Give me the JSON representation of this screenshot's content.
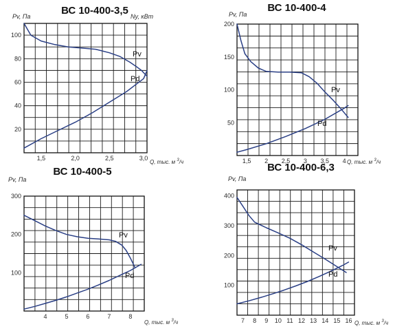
{
  "chart_data": [
    {
      "type": "line",
      "title": "ВС 10-400-3,5",
      "ylabel": "Pv, Па",
      "y2label": "Ny, кВт",
      "xlabel": "Q, тыс. м",
      "xlabel_sup": "3",
      "xlabel_tail": "/ч",
      "xlim": [
        1.25,
        3.05
      ],
      "ylim": [
        0,
        110
      ],
      "x_ticks": [
        1.5,
        2.0,
        2.5,
        3.0
      ],
      "x_tick_labels": [
        "1,5",
        "2,0",
        "2,5",
        "3,0"
      ],
      "y_ticks": [
        20,
        40,
        60,
        80,
        100
      ],
      "y_tick_labels": [
        "20",
        "40",
        "60",
        "80",
        "100"
      ],
      "grid": true,
      "series": [
        {
          "name": "Pv",
          "x": [
            1.25,
            1.35,
            1.5,
            1.7,
            1.9,
            2.1,
            2.3,
            2.5,
            2.65,
            2.8,
            2.9,
            2.97,
            3.05
          ],
          "y": [
            110,
            100,
            95,
            92,
            90,
            89,
            88,
            85,
            82,
            77,
            73,
            70,
            65
          ]
        },
        {
          "name": "Pd",
          "x": [
            1.25,
            1.5,
            1.75,
            2.0,
            2.25,
            2.5,
            2.75,
            3.0,
            3.05
          ],
          "y": [
            4,
            12,
            19,
            26,
            34,
            43,
            52,
            63,
            70
          ]
        }
      ]
    },
    {
      "type": "line",
      "title": "ВС 10-400-4",
      "ylabel": "Pv, Па",
      "xlabel": "Q, тыс. м",
      "xlabel_sup": "3",
      "xlabel_tail": "/ч",
      "xlim": [
        1.25,
        4.35
      ],
      "ylim": [
        0,
        200
      ],
      "x_ticks": [
        1.5,
        2.0,
        2.5,
        3.0,
        3.5,
        4.0
      ],
      "x_tick_labels": [
        "1,5",
        "2",
        "2,5",
        "3",
        "3,5",
        "4"
      ],
      "y_ticks": [
        50,
        100,
        150,
        200
      ],
      "y_tick_labels": [
        "50",
        "100",
        "150",
        "200"
      ],
      "grid": true,
      "series": [
        {
          "name": "Pv",
          "x": [
            1.25,
            1.35,
            1.45,
            1.6,
            1.8,
            2.0,
            2.3,
            2.6,
            2.9,
            3.1,
            3.3,
            3.5,
            3.7,
            3.9,
            4.1
          ],
          "y": [
            200,
            175,
            155,
            143,
            133,
            128,
            127,
            127,
            126,
            120,
            110,
            97,
            85,
            72,
            58
          ]
        },
        {
          "name": "Pd",
          "x": [
            1.25,
            1.5,
            2.0,
            2.5,
            3.0,
            3.5,
            4.0,
            4.1
          ],
          "y": [
            5,
            9,
            18,
            29,
            41,
            55,
            72,
            76
          ]
        }
      ]
    },
    {
      "type": "line",
      "title": "ВС 10-400-5",
      "ylabel": "Pv, Па",
      "xlabel": "Q, тыс. м",
      "xlabel_sup": "3",
      "xlabel_tail": "/ч",
      "xlim": [
        3.0,
        8.65
      ],
      "ylim": [
        0,
        300
      ],
      "x_ticks": [
        4,
        5,
        6,
        7,
        8
      ],
      "x_tick_labels": [
        "4",
        "5",
        "6",
        "7",
        "8"
      ],
      "y_ticks": [
        100,
        200,
        300
      ],
      "y_tick_labels": [
        "100",
        "200",
        "300"
      ],
      "grid": true,
      "series": [
        {
          "name": "Pv",
          "x": [
            3.0,
            3.5,
            4.0,
            4.5,
            5.0,
            5.5,
            6.0,
            6.5,
            7.0,
            7.3,
            7.6,
            7.8,
            8.0,
            8.2
          ],
          "y": [
            250,
            236,
            222,
            210,
            200,
            194,
            190,
            188,
            186,
            182,
            172,
            158,
            138,
            115
          ]
        },
        {
          "name": "Pd",
          "x": [
            3.0,
            3.5,
            4.0,
            4.5,
            5.0,
            5.5,
            6.0,
            6.5,
            7.0,
            7.5,
            8.0,
            8.5
          ],
          "y": [
            5,
            12,
            20,
            28,
            37,
            47,
            57,
            68,
            80,
            93,
            106,
            122
          ]
        }
      ]
    },
    {
      "type": "line",
      "title": "ВС 10-400-6,3",
      "ylabel": "Pv, Па",
      "xlabel": "Q, тыс. м",
      "xlabel_sup": "3",
      "xlabel_tail": "/ч",
      "xlim": [
        6.5,
        16.5
      ],
      "ylim": [
        0,
        420
      ],
      "x_ticks": [
        7,
        8,
        9,
        10,
        11,
        12,
        13,
        14,
        15,
        16
      ],
      "x_tick_labels": [
        "7",
        "8",
        "9",
        "10",
        "11",
        "12",
        "13",
        "14",
        "15",
        "16"
      ],
      "y_ticks": [
        100,
        200,
        300,
        400
      ],
      "y_tick_labels": [
        "100",
        "200",
        "300",
        "400"
      ],
      "grid": true,
      "series": [
        {
          "name": "Pv",
          "x": [
            6.5,
            7.0,
            7.5,
            8.0,
            9.0,
            10.0,
            11.0,
            12.0,
            13.0,
            14.0,
            15.0,
            15.8
          ],
          "y": [
            395,
            365,
            335,
            312,
            293,
            276,
            258,
            236,
            212,
            188,
            163,
            143
          ]
        },
        {
          "name": "Pd",
          "x": [
            6.5,
            7.5,
            8.5,
            9.5,
            10.5,
            11.5,
            12.5,
            13.5,
            14.5,
            15.5,
            16.0
          ],
          "y": [
            38,
            48,
            59,
            71,
            84,
            98,
            113,
            130,
            148,
            167,
            178
          ]
        }
      ]
    }
  ]
}
